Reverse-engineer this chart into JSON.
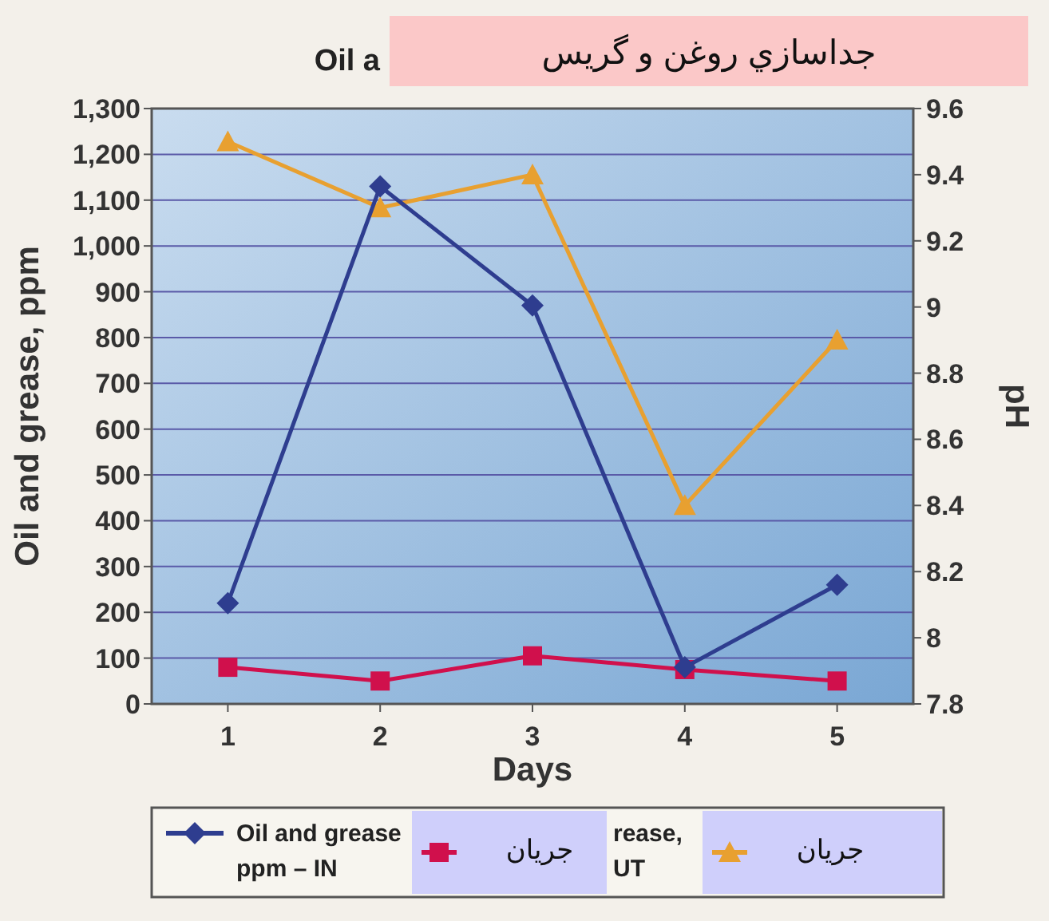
{
  "chart_data": {
    "type": "line",
    "title": "جداسازي روغن و گريس",
    "xlabel": "Days",
    "ylabel": "Oil and grease, ppm",
    "y2label": "pH",
    "categories": [
      "1",
      "2",
      "3",
      "4",
      "5"
    ],
    "series": [
      {
        "name": "Oil and grease ppm – IN",
        "color": "#2e3d8f",
        "marker": "diamond",
        "values": [
          220,
          1130,
          870,
          80,
          260
        ]
      },
      {
        "name": "جريان",
        "color": "#d0104c",
        "marker": "square",
        "values": [
          80,
          50,
          105,
          75,
          50
        ]
      },
      {
        "name": "جريان",
        "color": "#e8a030",
        "marker": "triangle",
        "axis": "y2",
        "values": [
          9.5,
          9.3,
          9.4,
          8.4,
          8.9
        ]
      }
    ],
    "ylim": [
      0,
      1300
    ],
    "yticks": [
      0,
      100,
      200,
      300,
      400,
      500,
      600,
      700,
      800,
      900,
      {
        "value": 1000,
        "label": "1,000"
      },
      {
        "value": 1100,
        "label": "1,100"
      },
      {
        "value": 1200,
        "label": "1,200"
      },
      {
        "value": 1300,
        "label": "1,300"
      }
    ],
    "y2lim": [
      7.8,
      9.6
    ],
    "y2ticks": [
      7.8,
      8,
      8.2,
      8.4,
      8.6,
      8.8,
      9,
      9.2,
      9.4,
      9.6
    ],
    "grid": "y",
    "legend": "bottom",
    "annotations": [
      "Oil a",
      "rease, UT"
    ]
  }
}
